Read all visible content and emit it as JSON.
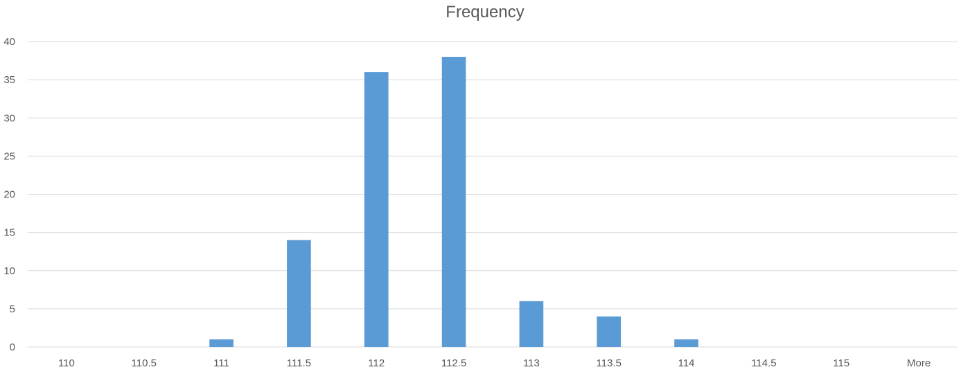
{
  "chart_data": {
    "type": "bar",
    "title": "Frequency",
    "xlabel": "",
    "ylabel": "",
    "categories": [
      "110",
      "110.5",
      "111",
      "111.5",
      "112",
      "112.5",
      "113",
      "113.5",
      "114",
      "114.5",
      "115",
      "More"
    ],
    "series": [
      {
        "values": [
          0,
          0,
          1,
          14,
          36,
          38,
          6,
          4,
          1,
          0,
          0,
          0
        ]
      }
    ],
    "ylim": [
      0,
      40
    ],
    "yticks": [
      0,
      5,
      10,
      15,
      20,
      25,
      30,
      35,
      40
    ],
    "grid": true,
    "legend": "none",
    "colors": {
      "bar": "#5B9BD5",
      "grid": "#D9D9D9",
      "text": "#595959"
    }
  }
}
